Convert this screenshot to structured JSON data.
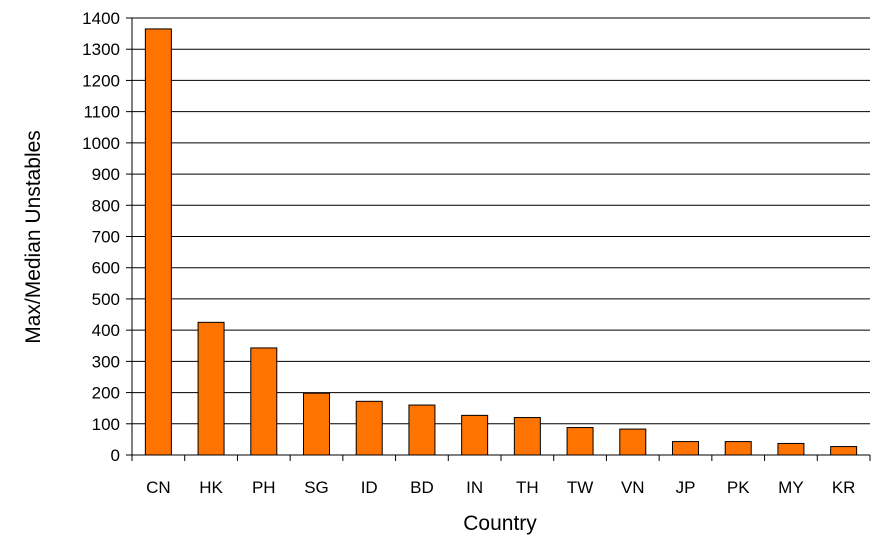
{
  "chart_data": {
    "type": "bar",
    "title": "",
    "xlabel": "Country",
    "ylabel": "Max/Median Unstables",
    "categories": [
      "CN",
      "HK",
      "PH",
      "SG",
      "ID",
      "BD",
      "IN",
      "TH",
      "TW",
      "VN",
      "JP",
      "PK",
      "MY",
      "KR"
    ],
    "values": [
      1365,
      425,
      343,
      198,
      172,
      160,
      127,
      120,
      88,
      83,
      43,
      43,
      37,
      27
    ],
    "ylim": [
      0,
      1400
    ],
    "yticks": [
      "0",
      "100",
      "200",
      "300",
      "400",
      "500",
      "600",
      "700",
      "800",
      "900",
      "1000",
      "1100",
      "1200",
      "1300",
      "1400"
    ],
    "grid": true,
    "legend": "none",
    "colors": {
      "bar_fill": "#ff7300",
      "bar_stroke": "#000000",
      "grid": "#000000"
    }
  }
}
